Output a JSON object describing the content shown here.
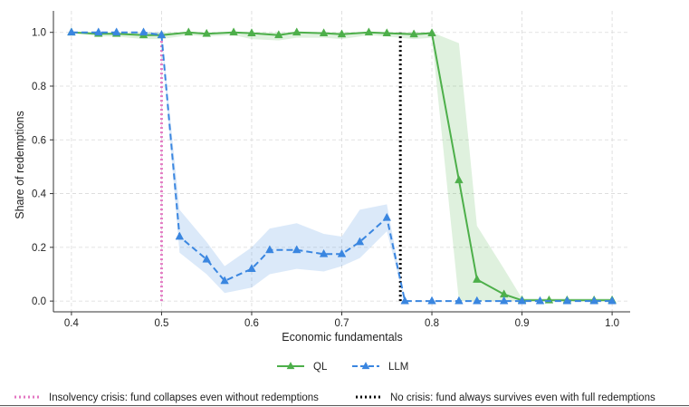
{
  "chart_data": {
    "type": "line",
    "xlabel": "Economic fundamentals",
    "ylabel": "Share of redemptions",
    "xlim": [
      0.38,
      1.02
    ],
    "ylim": [
      -0.04,
      1.08
    ],
    "xticks": [
      0.4,
      0.5,
      0.6,
      0.7,
      0.8,
      0.9,
      1.0
    ],
    "xtick_labels": [
      "0.4",
      "0.5",
      "0.6",
      "0.7",
      "0.8",
      "0.9",
      "1.0"
    ],
    "yticks": [
      0.0,
      0.2,
      0.4,
      0.6,
      0.8,
      1.0
    ],
    "ytick_labels": [
      "0.0",
      "0.2",
      "0.4",
      "0.6",
      "0.8",
      "1.0"
    ],
    "grid": true,
    "legend_position": "bottom-center",
    "series": [
      {
        "name": "QL",
        "color": "#4daf4a",
        "line_style": "solid",
        "marker": "triangle",
        "x": [
          0.4,
          0.43,
          0.45,
          0.48,
          0.5,
          0.53,
          0.55,
          0.58,
          0.6,
          0.63,
          0.65,
          0.68,
          0.7,
          0.73,
          0.75,
          0.78,
          0.8,
          0.83,
          0.85,
          0.88,
          0.9,
          0.93,
          0.95,
          0.98,
          1.0
        ],
        "values": [
          1.0,
          0.995,
          0.995,
          0.99,
          0.99,
          1.0,
          0.995,
          1.0,
          0.997,
          0.99,
          1.0,
          0.997,
          0.993,
          1.0,
          0.997,
          0.993,
          0.997,
          0.45,
          0.08,
          0.025,
          0.003,
          0.003,
          0.003,
          0.003,
          0.003
        ],
        "band_lower": [
          1.0,
          0.985,
          0.985,
          0.975,
          0.975,
          0.99,
          0.985,
          0.99,
          0.975,
          0.97,
          0.98,
          0.98,
          0.975,
          0.99,
          0.985,
          0.975,
          0.98,
          0.0,
          0.0,
          0.0,
          0.0,
          0.0,
          0.0,
          0.0,
          0.0
        ],
        "band_upper": [
          1.0,
          1.0,
          1.0,
          1.0,
          1.0,
          1.0,
          1.0,
          1.0,
          1.0,
          1.0,
          1.0,
          1.0,
          1.0,
          1.0,
          1.0,
          1.0,
          1.0,
          0.96,
          0.28,
          0.12,
          0.01,
          0.01,
          0.01,
          0.01,
          0.01
        ]
      },
      {
        "name": "LLM",
        "color": "#3a86e0",
        "line_style": "dashed",
        "marker": "triangle",
        "x": [
          0.4,
          0.43,
          0.45,
          0.48,
          0.5,
          0.52,
          0.55,
          0.57,
          0.6,
          0.62,
          0.65,
          0.68,
          0.7,
          0.72,
          0.75,
          0.77,
          0.8,
          0.83,
          0.85,
          0.88,
          0.9,
          0.92,
          0.95,
          0.98,
          1.0
        ],
        "values": [
          1.0,
          1.0,
          1.0,
          1.0,
          0.99,
          0.24,
          0.155,
          0.075,
          0.12,
          0.19,
          0.19,
          0.175,
          0.175,
          0.22,
          0.31,
          0.0,
          0.0,
          0.0,
          0.0,
          0.0,
          0.0,
          0.0,
          0.0,
          0.0,
          0.0
        ],
        "band_lower": [
          1.0,
          1.0,
          1.0,
          1.0,
          0.98,
          0.18,
          0.1,
          0.03,
          0.05,
          0.1,
          0.12,
          0.11,
          0.13,
          0.16,
          0.26,
          0.0,
          0.0,
          0.0,
          0.0,
          0.0,
          0.0,
          0.0,
          0.0,
          0.0,
          0.0
        ],
        "band_upper": [
          1.0,
          1.0,
          1.0,
          1.0,
          1.0,
          0.34,
          0.22,
          0.13,
          0.2,
          0.27,
          0.29,
          0.25,
          0.24,
          0.34,
          0.36,
          0.0,
          0.0,
          0.0,
          0.0,
          0.0,
          0.0,
          0.0,
          0.0,
          0.0,
          0.0
        ]
      }
    ],
    "reference_lines": [
      {
        "name": "Insolvency crisis: fund collapses even without redemptions",
        "x": 0.5,
        "y_from": 0.0,
        "y_to": 1.0,
        "color": "#e377c2",
        "line_style": "dotted"
      },
      {
        "name": "No crisis: fund always survives even with full redemptions",
        "x": 0.765,
        "y_from": 0.0,
        "y_to": 1.0,
        "color": "#000000",
        "line_style": "dotted"
      }
    ]
  }
}
